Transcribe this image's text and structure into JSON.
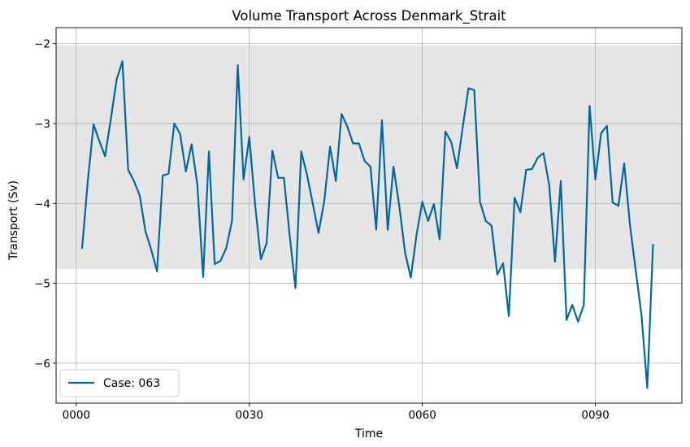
{
  "chart_data": {
    "type": "line",
    "title": "Volume Transport Across Denmark_Strait",
    "xlabel": "Time",
    "ylabel": "Transport (Sv)",
    "xlim": [
      -3.5,
      105
    ],
    "ylim": [
      -6.5,
      -1.8
    ],
    "xticks": [
      0,
      30,
      60,
      90
    ],
    "xtick_labels": [
      "0000",
      "0030",
      "0060",
      "0090"
    ],
    "yticks": [
      -6,
      -5,
      -4,
      -3,
      -2
    ],
    "ytick_labels": [
      "−6",
      "−5",
      "−4",
      "−3",
      "−2"
    ],
    "grid": true,
    "legend_position": "lower-left",
    "shaded_band": {
      "y_min": -4.82,
      "y_max": -2.02,
      "color": "#e5e5e5"
    },
    "series": [
      {
        "name": "Case: 063",
        "color": "#00689e",
        "x": [
          1,
          2,
          3,
          4,
          5,
          6,
          7,
          8,
          9,
          10,
          11,
          12,
          13,
          14,
          15,
          16,
          17,
          18,
          19,
          20,
          21,
          22,
          23,
          24,
          25,
          26,
          27,
          28,
          29,
          30,
          31,
          32,
          33,
          34,
          35,
          36,
          37,
          38,
          39,
          40,
          41,
          42,
          43,
          44,
          45,
          46,
          47,
          48,
          49,
          50,
          51,
          52,
          53,
          54,
          55,
          56,
          57,
          58,
          59,
          60,
          61,
          62,
          63,
          64,
          65,
          66,
          67,
          68,
          69,
          70,
          71,
          72,
          73,
          74,
          75,
          76,
          77,
          78,
          79,
          80,
          81,
          82,
          83,
          84,
          85,
          86,
          87,
          88,
          89,
          90,
          91,
          92,
          93,
          94,
          95,
          96,
          97,
          98,
          99,
          100
        ],
        "y": [
          -4.57,
          -3.72,
          -3.01,
          -3.22,
          -3.41,
          -2.94,
          -2.45,
          -2.22,
          -3.58,
          -3.72,
          -3.9,
          -4.35,
          -4.58,
          -4.85,
          -3.65,
          -3.63,
          -3.0,
          -3.13,
          -3.6,
          -3.26,
          -3.77,
          -4.92,
          -3.35,
          -4.76,
          -4.72,
          -4.56,
          -4.22,
          -2.27,
          -3.7,
          -3.17,
          -4.01,
          -4.7,
          -4.5,
          -3.34,
          -3.68,
          -3.68,
          -4.4,
          -5.06,
          -3.35,
          -3.64,
          -4.0,
          -4.37,
          -3.97,
          -3.29,
          -3.72,
          -2.88,
          -3.04,
          -3.25,
          -3.25,
          -3.47,
          -3.54,
          -4.33,
          -2.96,
          -4.33,
          -3.54,
          -4.03,
          -4.61,
          -4.93,
          -4.39,
          -3.98,
          -4.22,
          -4.01,
          -4.45,
          -3.1,
          -3.23,
          -3.56,
          -3.05,
          -2.56,
          -2.58,
          -3.98,
          -4.22,
          -4.28,
          -4.89,
          -4.75,
          -5.41,
          -3.93,
          -4.11,
          -3.58,
          -3.57,
          -3.43,
          -3.37,
          -3.77,
          -4.73,
          -3.72,
          -5.46,
          -5.27,
          -5.48,
          -5.27,
          -2.78,
          -3.7,
          -3.12,
          -3.03,
          -3.99,
          -4.03,
          -3.5,
          -4.27,
          -4.84,
          -5.4,
          -6.31,
          -4.51
        ]
      }
    ]
  }
}
